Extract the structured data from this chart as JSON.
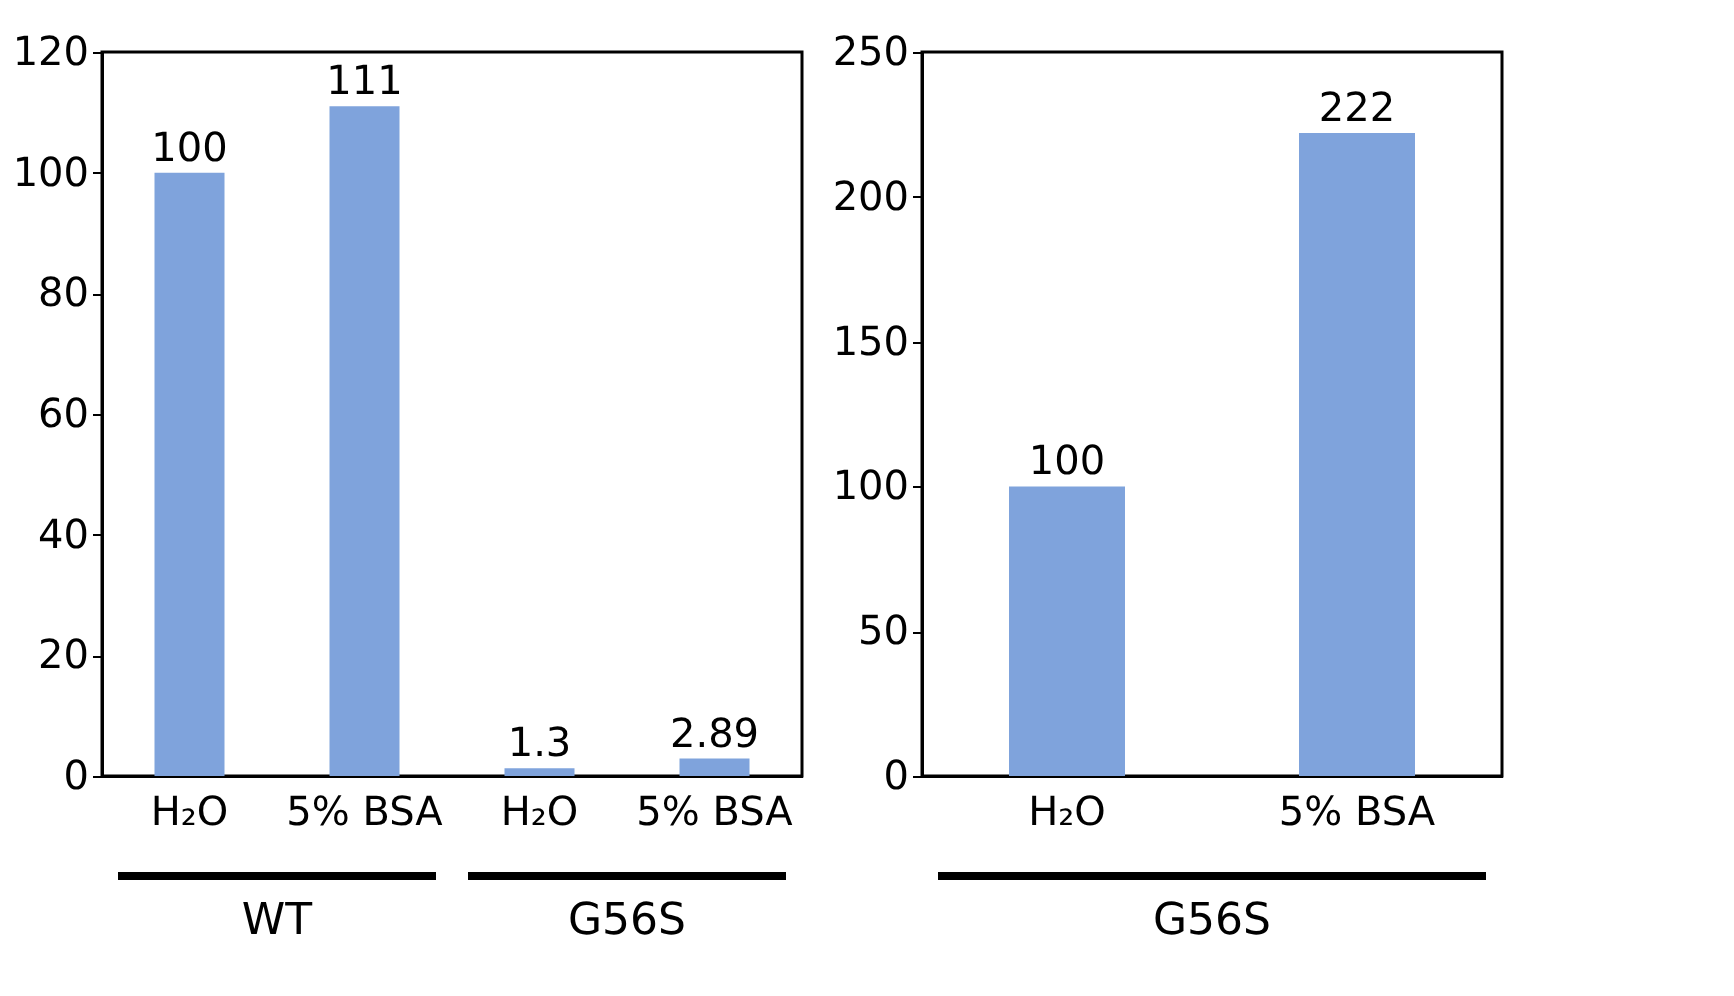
{
  "chart_data": [
    {
      "type": "bar",
      "categories": [
        "H₂O",
        "5% BSA",
        "H₂O",
        "5% BSA"
      ],
      "values": [
        100,
        111,
        1.3,
        2.89
      ],
      "color": "#7fa3dc",
      "ylim": [
        0,
        120
      ],
      "yticks": [
        0,
        20,
        40,
        60,
        80,
        100,
        120
      ],
      "data_labels": true,
      "grid": false,
      "annotations": [
        "WT",
        "G56S"
      ]
    },
    {
      "type": "bar",
      "categories": [
        "H₂O",
        "5% BSA"
      ],
      "values": [
        100,
        222
      ],
      "color": "#7fa3dc",
      "ylim": [
        0,
        250
      ],
      "yticks": [
        0,
        50,
        100,
        150,
        200,
        250
      ],
      "data_labels": true,
      "grid": false,
      "annotations": [
        "G56S"
      ]
    }
  ]
}
